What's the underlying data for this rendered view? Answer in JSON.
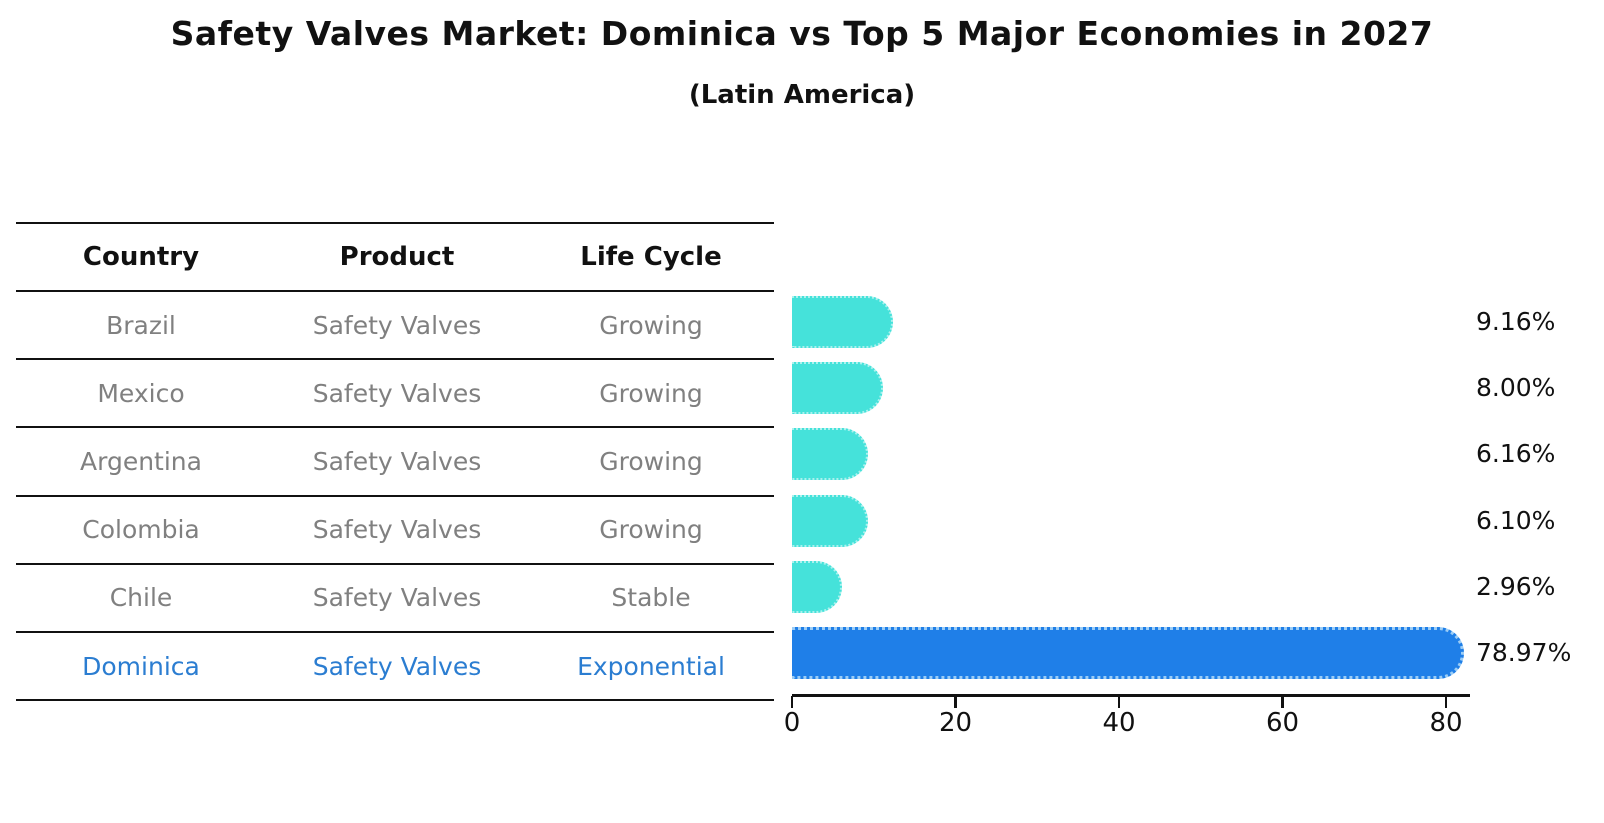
{
  "title": "Safety Valves Market: Dominica vs Top 5 Major Economies in 2027",
  "subtitle": "(Latin America)",
  "table": {
    "headers": [
      "Country",
      "Product",
      "Life Cycle"
    ],
    "rows": [
      {
        "country": "Brazil",
        "product": "Safety Valves",
        "life_cycle": "Growing",
        "highlighted": false
      },
      {
        "country": "Mexico",
        "product": "Safety Valves",
        "life_cycle": "Growing",
        "highlighted": false
      },
      {
        "country": "Argentina",
        "product": "Safety Valves",
        "life_cycle": "Growing",
        "highlighted": false
      },
      {
        "country": "Colombia",
        "product": "Safety Valves",
        "life_cycle": "Growing",
        "highlighted": false
      },
      {
        "country": "Chile",
        "product": "Safety Valves",
        "life_cycle": "Stable",
        "highlighted": false
      },
      {
        "country": "Dominica",
        "product": "Safety Valves",
        "life_cycle": "Exponential",
        "highlighted": true
      }
    ]
  },
  "chart_data": {
    "type": "bar",
    "orientation": "horizontal",
    "title": "Safety Valves Market: Dominica vs Top 5 Major Economies in 2027",
    "subtitle": "(Latin America)",
    "categories": [
      "Brazil",
      "Mexico",
      "Argentina",
      "Colombia",
      "Chile",
      "Dominica"
    ],
    "values": [
      9.16,
      8.0,
      6.16,
      6.1,
      2.96,
      78.97
    ],
    "value_labels": [
      "9.16%",
      "8.00%",
      "6.16%",
      "6.10%",
      "2.96%",
      "78.97%"
    ],
    "unit": "%",
    "xlabel": "",
    "ylabel": "",
    "xlim": [
      0,
      82
    ],
    "x_ticks": [
      0,
      20,
      40,
      60,
      80
    ],
    "grid": false,
    "legend": false,
    "bar_color": "#45e2da",
    "highlight_color": "#1f7fe8",
    "highlight_category": "Dominica",
    "highlight_text_color": "#2b7dd1"
  }
}
